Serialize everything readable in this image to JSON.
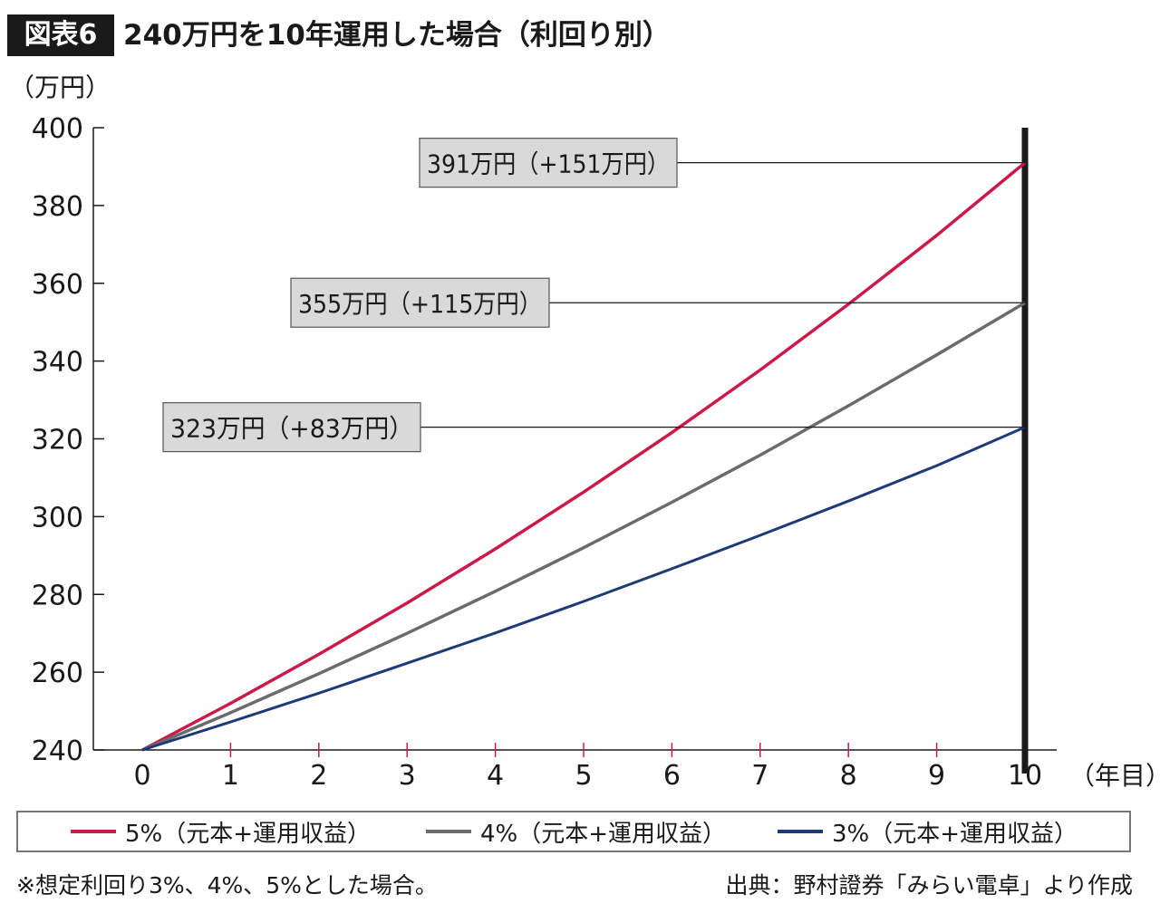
{
  "header": {
    "badge": "図表6",
    "title": "240万円を10年運用した場合（利回り別）"
  },
  "colors": {
    "series_5": "#cc1a48",
    "series_4": "#6b6b6b",
    "series_3": "#1f3a78",
    "axis": "#1a1a1a",
    "callout_bg": "#d9d9d9"
  },
  "chart_data": {
    "type": "line",
    "ylabel": "（万円）",
    "xlabel": "（年目）",
    "xlim": [
      0,
      10
    ],
    "ylim": [
      240,
      400
    ],
    "x_ticks": [
      "0",
      "1",
      "2",
      "3",
      "4",
      "5",
      "6",
      "7",
      "8",
      "9",
      "10"
    ],
    "y_ticks": [
      "240",
      "260",
      "280",
      "300",
      "320",
      "340",
      "360",
      "380",
      "400"
    ],
    "x": [
      0,
      1,
      2,
      3,
      4,
      5,
      6,
      7,
      8,
      9,
      10
    ],
    "series": [
      {
        "name": "5%（元本+運用収益）",
        "values": [
          240,
          252,
          264.6,
          277.8,
          291.7,
          306.3,
          321.6,
          337.7,
          354.6,
          372.3,
          391
        ]
      },
      {
        "name": "4%（元本+運用収益）",
        "values": [
          240,
          249.6,
          259.6,
          270,
          280.8,
          292,
          303.7,
          315.8,
          328.5,
          341.6,
          355
        ]
      },
      {
        "name": "3%（元本+運用収益）",
        "values": [
          240,
          247.2,
          254.6,
          262.3,
          270.1,
          278.2,
          286.6,
          295.2,
          304,
          313.1,
          323
        ]
      }
    ],
    "annotations": [
      {
        "text": "391万円（+151万円）",
        "value": 391
      },
      {
        "text": "355万円（+115万円）",
        "value": 355
      },
      {
        "text": "323万円（+83万円）",
        "value": 323
      }
    ],
    "marker_x": 10,
    "grid": false,
    "legend_position": "bottom"
  },
  "footnote": "※想定利回り3%、4%、5%とした場合。",
  "source": "出典：野村證券「みらい電卓」より作成"
}
